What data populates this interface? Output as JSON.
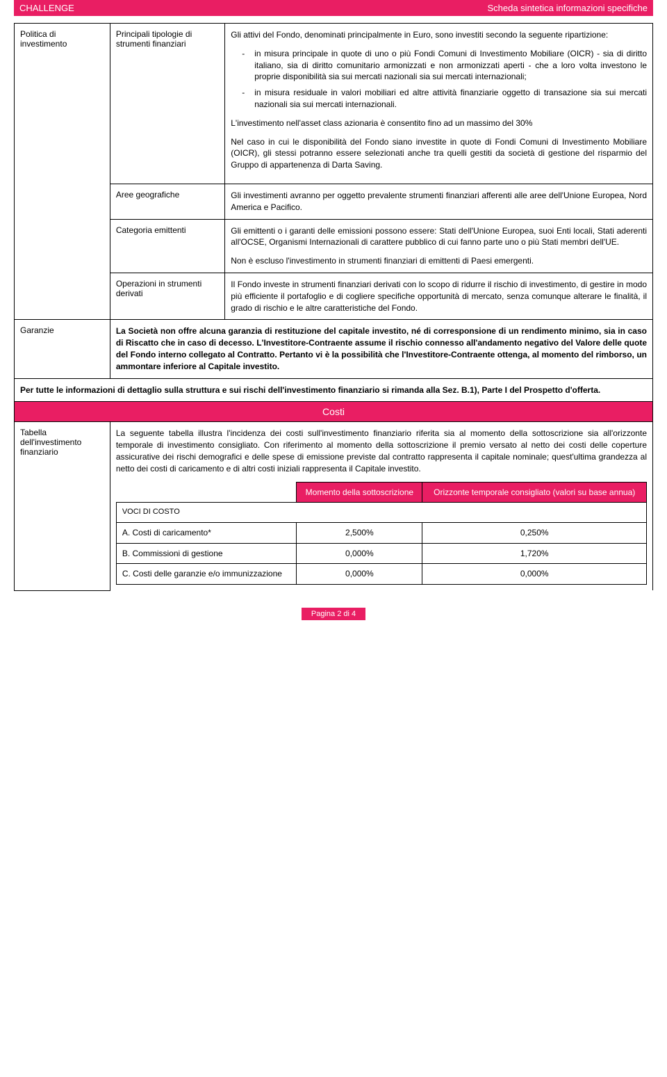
{
  "header": {
    "left": "CHALLENGE",
    "right": "Scheda sintetica informazioni specifiche"
  },
  "rows": {
    "politica": {
      "label": "Politica di investimento",
      "principali": {
        "label": "Principali tipologie di strumenti finanziari",
        "intro": "Gli attivi del Fondo, denominati principalmente in Euro, sono investiti secondo la seguente ripartizione:",
        "bullet1": "in misura principale in quote di uno o più Fondi Comuni di Investimento Mobiliare (OICR) - sia di diritto italiano, sia di diritto comunitario armonizzati e non armonizzati aperti - che a loro volta investono le proprie disponibilità sia sui mercati nazionali sia sui mercati internazionali;",
        "bullet2": "in misura residuale in valori mobiliari ed altre attività finanziarie oggetto di transazione sia sui mercati nazionali sia sui mercati internazionali.",
        "p1": "L'investimento nell'asset class azionaria è consentito fino ad un massimo del 30%",
        "p2": "Nel caso in cui le disponibilità del Fondo siano investite in quote di Fondi Comuni di Investimento Mobiliare (OICR), gli stessi potranno essere selezionati anche tra quelli gestiti da società di gestione del risparmio del Gruppo di appartenenza di Darta Saving."
      },
      "aree": {
        "label": "Aree geografiche",
        "text": "Gli investimenti avranno per oggetto prevalente strumenti finanziari afferenti alle aree dell'Unione Europea, Nord America e Pacifico."
      },
      "categoria": {
        "label": "Categoria emittenti",
        "p1": "Gli emittenti o i garanti delle emissioni possono essere: Stati dell'Unione Europea, suoi Enti locali, Stati aderenti all'OCSE, Organismi Internazionali di carattere pubblico di cui fanno parte uno o più Stati membri dell'UE.",
        "p2": "Non è escluso l'investimento in strumenti finanziari di emittenti di Paesi emergenti."
      },
      "operazioni": {
        "label": "Operazioni in strumenti derivati",
        "text": "Il Fondo investe in strumenti finanziari derivati con lo scopo di ridurre il rischio di investimento, di gestire in modo più efficiente il portafoglio e di cogliere specifiche opportunità di mercato, senza comunque alterare le finalità, il grado di rischio e le altre caratteristiche del Fondo."
      }
    },
    "garanzie": {
      "label": "Garanzie",
      "text": "La Società non offre alcuna garanzia di restituzione del capitale investito, né di corresponsione di un rendimento minimo, sia in caso di Riscatto che in caso di decesso. L'Investitore-Contraente assume il rischio connesso all'andamento negativo del Valore delle quote del Fondo interno collegato al Contratto. Pertanto vi è la possibilità che l'Investitore-Contraente ottenga, al momento del rimborso, un ammontare inferiore al Capitale investito."
    },
    "referral": "Per tutte le informazioni di dettaglio sulla struttura e sui rischi dell'investimento finanziario si rimanda alla Sez. B.1), Parte I del Prospetto d'offerta.",
    "costi": {
      "header": "Costi",
      "tabella": {
        "label": "Tabella dell'investimento finanziario",
        "intro": "La seguente tabella illustra l'incidenza dei costi sull'investimento finanziario riferita sia al momento della sottoscrizione sia all'orizzonte temporale di investimento consigliato. Con riferimento al momento della sottoscrizione il premio versato al netto dei costi delle coperture assicurative dei rischi demografici e delle spese di emissione previste dal contratto rappresenta il capitale nominale; quest'ultima grandezza al netto dei costi di caricamento e di altri costi iniziali rappresenta il Capitale investito.",
        "th1": "Momento della sottoscrizione",
        "th2": "Orizzonte temporale consigliato (valori su base annua)",
        "voci": "VOCI DI COSTO",
        "rowA": {
          "label": "A. Costi di caricamento*",
          "v1": "2,500%",
          "v2": "0,250%"
        },
        "rowB": {
          "label": "B. Commissioni di gestione",
          "v1": "0,000%",
          "v2": "1,720%"
        },
        "rowC": {
          "label": "C. Costi delle garanzie e/o immunizzazione",
          "v1": "0,000%",
          "v2": "0,000%"
        }
      }
    }
  },
  "footer": {
    "page": "Pagina 2 di 4"
  }
}
